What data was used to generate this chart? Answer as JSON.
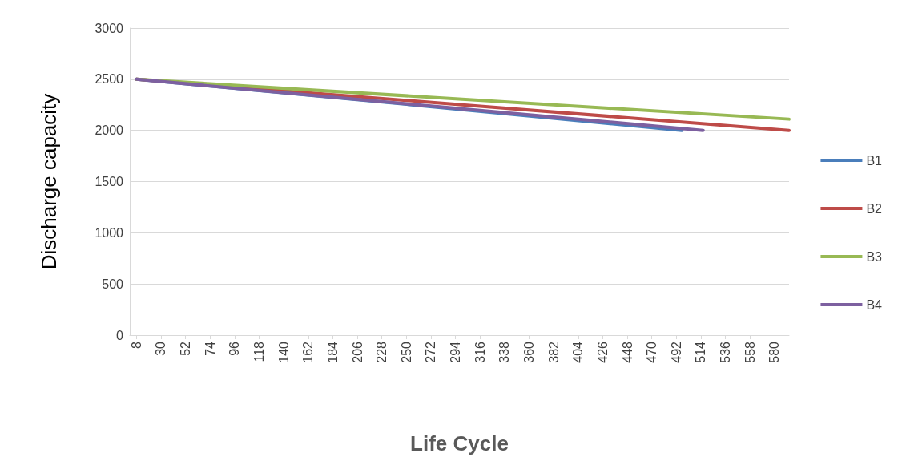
{
  "chart_data": {
    "type": "line",
    "xlabel": "Life Cycle",
    "ylabel": "Discharge capacity",
    "xlim": [
      2,
      593
    ],
    "xticks": [
      8,
      30,
      52,
      74,
      96,
      118,
      140,
      162,
      184,
      206,
      228,
      250,
      272,
      294,
      316,
      338,
      360,
      382,
      404,
      426,
      448,
      470,
      492,
      514,
      536,
      558,
      580
    ],
    "ylim": [
      0,
      3000
    ],
    "yticks": [
      0,
      500,
      1000,
      1500,
      2000,
      2500,
      3000
    ],
    "grid": "y",
    "legend": "right",
    "marker": "none",
    "line_style": "solid",
    "series": [
      {
        "name": "B1",
        "color": "#4a7ebb",
        "x": [
          8,
          250,
          497
        ],
        "values": [
          2500,
          2255,
          2000
        ]
      },
      {
        "name": "B2",
        "color": "#be4b48",
        "x": [
          8,
          300,
          593
        ],
        "values": [
          2500,
          2250,
          2000
        ]
      },
      {
        "name": "B3",
        "color": "#98b954",
        "x": [
          8,
          300,
          593
        ],
        "values": [
          2500,
          2305,
          2110
        ]
      },
      {
        "name": "B4",
        "color": "#7d60a0",
        "x": [
          8,
          260,
          516
        ],
        "values": [
          2500,
          2250,
          2000
        ]
      }
    ]
  }
}
